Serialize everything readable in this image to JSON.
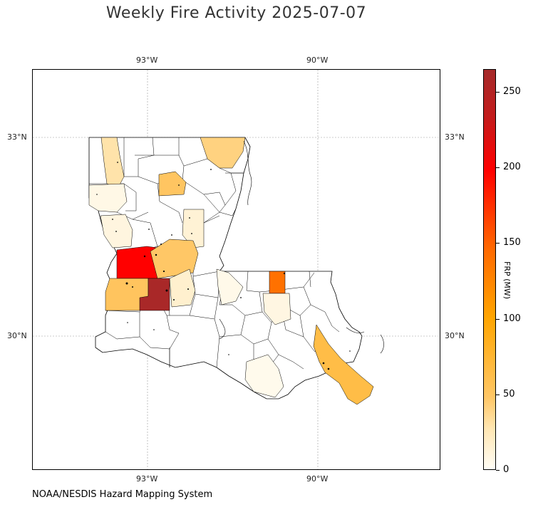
{
  "title": "Weekly Fire Activity 2025-07-07",
  "credit": "NOAA/NESDIS Hazard Mapping System",
  "colorbar": {
    "label": "FRP (MW)",
    "ticks": [
      "0",
      "50",
      "100",
      "150",
      "200",
      "250"
    ],
    "max": 265,
    "colors": [
      "#fffdf6",
      "#ffe7b4",
      "#ffc766",
      "#ffa500",
      "#ff6a00",
      "#ff0000",
      "#a52a2a"
    ]
  },
  "gridlines": {
    "lon_labels_top": [
      "93°W",
      "90°W"
    ],
    "lon_labels_bottom": [
      "93°W",
      "90°W"
    ],
    "lat_labels_left": [
      "33°N",
      "30°N"
    ],
    "lat_labels_right": [
      "33°N",
      "30°N"
    ]
  },
  "map": {
    "region": "Louisiana",
    "extent_lon": [
      -95.0,
      -87.8
    ],
    "extent_lat": [
      28.0,
      34.0
    ],
    "parishes_highlighted": [
      {
        "frp": 22
      },
      {
        "frp": 30
      },
      {
        "frp": 38
      },
      {
        "frp": 5
      },
      {
        "frp": 7
      },
      {
        "frp": 10
      },
      {
        "frp": 200
      },
      {
        "frp": 35
      },
      {
        "frp": 40
      },
      {
        "frp": 262
      },
      {
        "frp": 12
      },
      {
        "frp": 140
      },
      {
        "frp": 6
      },
      {
        "frp": 4
      },
      {
        "frp": 55
      },
      {
        "frp": 3
      }
    ]
  }
}
